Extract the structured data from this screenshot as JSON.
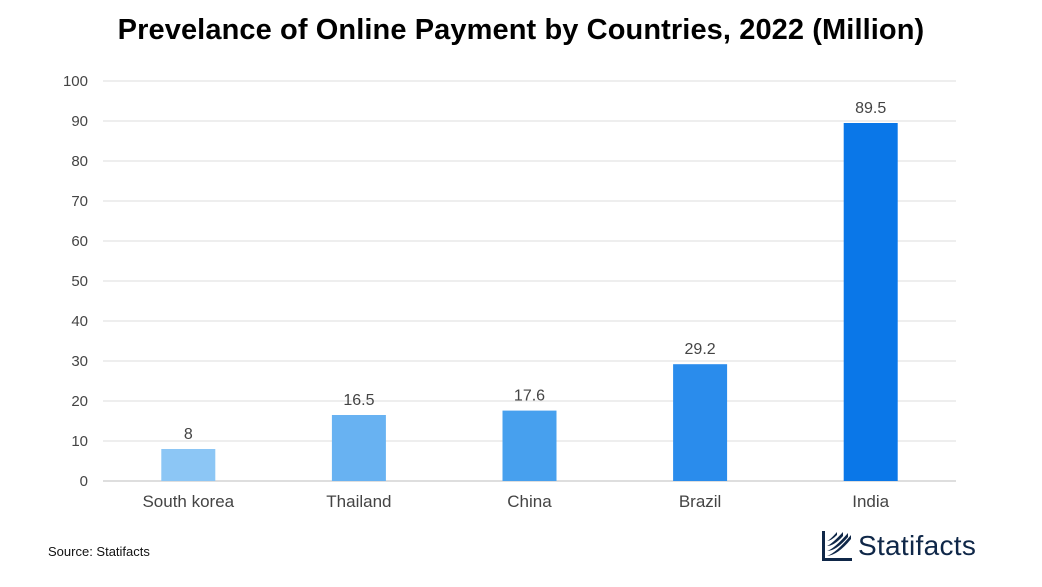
{
  "chart_title": "Prevelance of Online Payment by Countries, 2022 (Million)",
  "source_text": "Source: Statifacts",
  "brand_name": "Statifacts",
  "chart_data": {
    "type": "bar",
    "title": "Prevelance of Online Payment by Countries, 2022 (Million)",
    "xlabel": "",
    "ylabel": "",
    "categories": [
      "South korea",
      "Thailand",
      "China",
      "Brazil",
      "India"
    ],
    "values": [
      8,
      16.5,
      17.6,
      29.2,
      89.5
    ],
    "value_labels": [
      "8",
      "16.5",
      "17.6",
      "29.2",
      "89.5"
    ],
    "ylim": [
      0,
      100
    ],
    "yticks": [
      "0",
      "10",
      "20",
      "30",
      "40",
      "50",
      "60",
      "70",
      "80",
      "90",
      "100"
    ],
    "grid": true,
    "legend": "none",
    "bar_colors": [
      "#8cc6f5",
      "#68b2f2",
      "#47a0ee",
      "#2a8cec",
      "#0a77e8"
    ],
    "gridline_color": "#dcdcdc",
    "text_color": "#444444"
  }
}
